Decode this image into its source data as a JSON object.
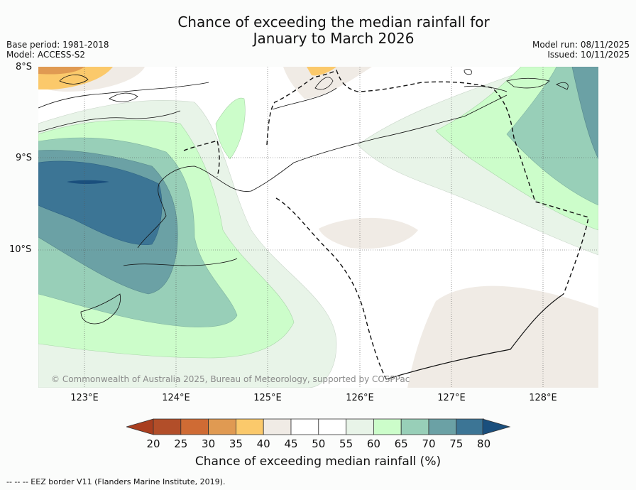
{
  "title": {
    "line1": "Chance of exceeding the median rainfall for",
    "line2": "January to March 2026"
  },
  "meta_left": {
    "base_period": "Base period: 1981-2018",
    "model": "Model: ACCESS-S2"
  },
  "meta_right": {
    "model_run": "Model run: 08/11/2025",
    "issued": "Issued: 10/11/2025"
  },
  "axes": {
    "lat_labels": [
      "8°S",
      "9°S",
      "10°S"
    ],
    "lon_labels": [
      "123°E",
      "124°E",
      "125°E",
      "126°E",
      "127°E",
      "128°E"
    ]
  },
  "credit": "© Commonwealth of Australia 2025, Bureau of Meteorology, supported by COSPPac",
  "colorbar": {
    "ticks": [
      "20",
      "25",
      "30",
      "35",
      "40",
      "45",
      "50",
      "55",
      "60",
      "65",
      "70",
      "75",
      "80"
    ],
    "colors": [
      "#a93e1f",
      "#b24e29",
      "#cf6b34",
      "#e09a52",
      "#fbc96b",
      "#f0ebe5",
      "#ffffff",
      "#ffffff",
      "#e8f4e8",
      "#ccfdca",
      "#98cfb8",
      "#6ba1a5",
      "#3c7595",
      "#1a4f7d"
    ],
    "label": "Chance of exceeding median rainfall (%)"
  },
  "footer": "--  --  -- EEZ border V11 (Flanders Marine Institute, 2019)."
}
